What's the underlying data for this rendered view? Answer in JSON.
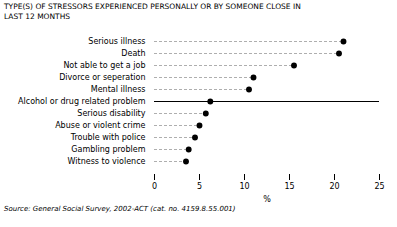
{
  "chart_data": {
    "type": "lollipop",
    "title": "TYPE(S) OF STRESSORS EXPERIENCED PERSONALLY OR BY SOMEONE CLOSE IN",
    "subtitle": "LAST 12 MONTHS",
    "caption": "Source: General Social Survey, 2002-ACT (cat. no. 4159.8.55.001)",
    "orientation": "horizontal",
    "categories": [
      "Witness to violence",
      "Gambling problem",
      "Trouble with police",
      "Abuse or violent crime",
      "Serious disability",
      "Alcohol or drug related problem",
      "Mental illness",
      "Divorce or seperation",
      "Not able to get a job",
      "Death",
      "Serious illness"
    ],
    "values": [
      3.5,
      3.8,
      4.5,
      5.0,
      5.7,
      6.2,
      10.5,
      11.0,
      15.5,
      20.5,
      21.0
    ],
    "xlabel": "%",
    "xlim": [
      0,
      25
    ],
    "xticks": [
      0,
      5,
      10,
      15,
      20,
      25
    ],
    "color": "#000000",
    "line_style": "dashed",
    "marker": "circle",
    "grid": false
  }
}
